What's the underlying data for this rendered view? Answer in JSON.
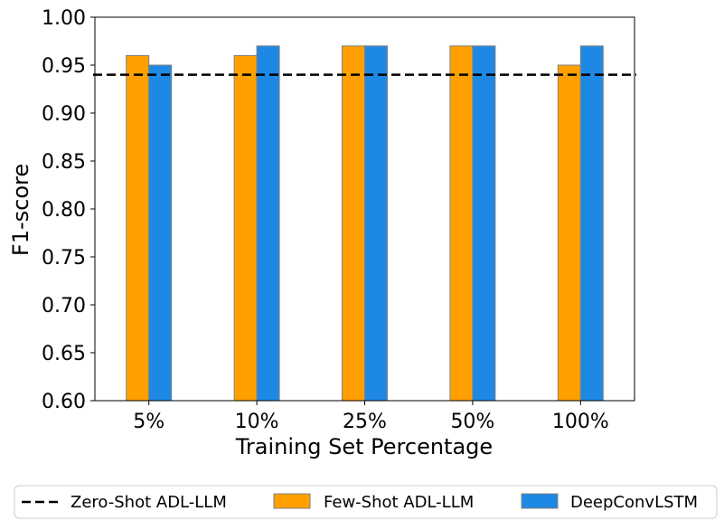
{
  "chart_data": {
    "type": "bar",
    "title": "",
    "xlabel": "Training Set Percentage",
    "ylabel": "F1-score",
    "categories": [
      "5%",
      "10%",
      "25%",
      "50%",
      "100%"
    ],
    "ylim": [
      0.6,
      1.0
    ],
    "yticks": [
      "0.60",
      "0.65",
      "0.70",
      "0.75",
      "0.80",
      "0.85",
      "0.90",
      "0.95",
      "1.00"
    ],
    "grid": false,
    "series": [
      {
        "name": "Few-Shot ADL-LLM",
        "values": [
          0.96,
          0.96,
          0.97,
          0.97,
          0.95
        ],
        "color": "#FFA000",
        "edge_color": "#808080"
      },
      {
        "name": "DeepConvLSTM",
        "values": [
          0.95,
          0.97,
          0.97,
          0.97,
          0.97
        ],
        "color": "#1E88E5",
        "edge_color": "#808080"
      }
    ],
    "reference_lines": [
      {
        "name": "Zero-Shot ADL-LLM",
        "value": 0.94,
        "style": "dashed",
        "color": "#000000"
      }
    ],
    "legend": {
      "placement": "bottom-outside",
      "entries": [
        "Zero-Shot ADL-LLM",
        "Few-Shot ADL-LLM",
        "DeepConvLSTM"
      ]
    }
  }
}
